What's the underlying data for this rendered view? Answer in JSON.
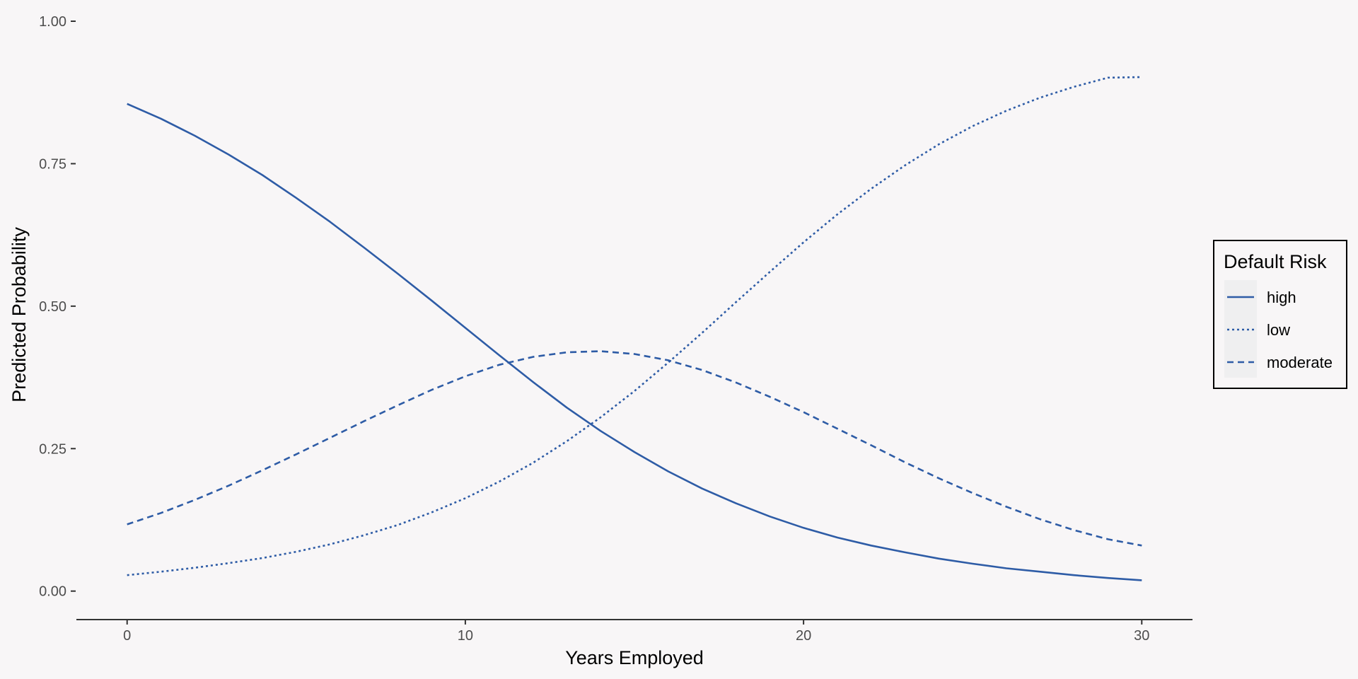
{
  "chart_data": {
    "type": "line",
    "title": "",
    "xlabel": "Years Employed",
    "ylabel": "Predicted Probability",
    "xlim": [
      -1.5,
      31.5
    ],
    "ylim": [
      -0.05,
      1.0
    ],
    "x_ticks": [
      0,
      10,
      20,
      30
    ],
    "x_tick_labels": [
      "0",
      "10",
      "20",
      "30"
    ],
    "y_ticks": [
      0,
      0.25,
      0.5,
      0.75,
      1.0
    ],
    "y_tick_labels": [
      "0.00",
      "0.25",
      "0.50",
      "0.75",
      "1.00"
    ],
    "grid": false,
    "legend": {
      "title": "Default Risk",
      "position": "right"
    },
    "x": [
      0,
      1,
      2,
      3,
      4,
      5,
      6,
      7,
      8,
      9,
      10,
      11,
      12,
      13,
      14,
      15,
      16,
      17,
      18,
      19,
      20,
      21,
      22,
      23,
      24,
      25,
      26,
      27,
      28,
      29,
      30
    ],
    "series": [
      {
        "name": "high",
        "linestyle": "solid",
        "values": [
          0.855,
          0.829,
          0.799,
          0.766,
          0.73,
          0.69,
          0.648,
          0.603,
          0.557,
          0.51,
          0.462,
          0.414,
          0.367,
          0.322,
          0.281,
          0.244,
          0.21,
          0.18,
          0.154,
          0.131,
          0.111,
          0.094,
          0.08,
          0.068,
          0.057,
          0.048,
          0.04,
          0.034,
          0.028,
          0.023,
          0.019
        ]
      },
      {
        "name": "low",
        "linestyle": "dotted",
        "values": [
          0.028,
          0.034,
          0.041,
          0.049,
          0.058,
          0.069,
          0.082,
          0.098,
          0.116,
          0.138,
          0.163,
          0.192,
          0.225,
          0.263,
          0.305,
          0.351,
          0.401,
          0.453,
          0.507,
          0.56,
          0.612,
          0.661,
          0.706,
          0.747,
          0.784,
          0.816,
          0.843,
          0.866,
          0.885,
          0.901,
          0.902
        ]
      },
      {
        "name": "moderate",
        "linestyle": "dashed",
        "values": [
          0.117,
          0.137,
          0.16,
          0.185,
          0.212,
          0.24,
          0.269,
          0.298,
          0.326,
          0.353,
          0.377,
          0.397,
          0.411,
          0.419,
          0.421,
          0.416,
          0.405,
          0.388,
          0.366,
          0.341,
          0.314,
          0.285,
          0.256,
          0.226,
          0.198,
          0.172,
          0.148,
          0.126,
          0.107,
          0.091,
          0.08
        ]
      }
    ]
  },
  "colors": {
    "line": "#2e5ca6",
    "background": "#f8f6f7",
    "axis": "#333333",
    "legend_key_bg": "#efeff0"
  }
}
